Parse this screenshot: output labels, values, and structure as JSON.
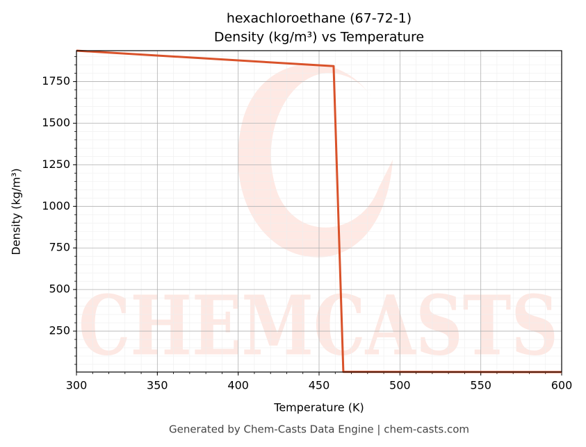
{
  "chart_data": {
    "type": "line",
    "title": "hexachloroethane (67-72-1)",
    "subtitle": "Density (kg/m³) vs Temperature",
    "x_label": "Temperature (K)",
    "y_label": "Density (kg/m³)",
    "x": [
      300,
      459,
      465,
      600
    ],
    "series": [
      {
        "name": "Density",
        "color": "#d9522a",
        "values": [
          1936,
          1843,
          5,
          4
        ]
      }
    ],
    "xlim": [
      300,
      600
    ],
    "xticks": [
      300,
      350,
      400,
      450,
      500,
      550,
      600
    ],
    "ylim": [
      4,
      1936
    ],
    "yticks": [
      250,
      500,
      750,
      1000,
      1250,
      1500,
      1750
    ],
    "xminor": 10,
    "yminor": 50,
    "grid": true,
    "watermark": "CHEMCASTS",
    "footer": "Generated by Chem-Casts Data Engine | chem-casts.com"
  }
}
